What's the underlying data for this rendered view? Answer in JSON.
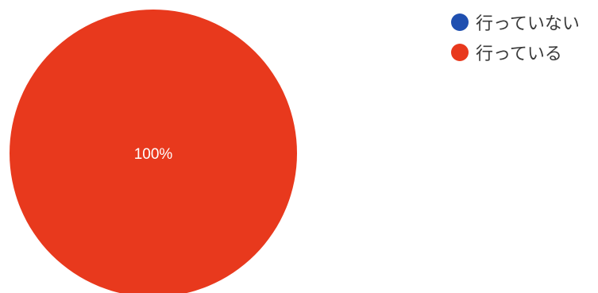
{
  "chart_data": {
    "type": "pie",
    "categories": [
      "行っていない",
      "行っている"
    ],
    "values": [
      0,
      100
    ],
    "colors": [
      "#1f4fb0",
      "#e8391d"
    ],
    "data_labels": [
      "",
      "100%"
    ],
    "legend": {
      "placement": "top-right",
      "items": [
        {
          "label": "行っていない",
          "color": "#1f4fb0"
        },
        {
          "label": "行っている",
          "color": "#e8391d"
        }
      ]
    }
  }
}
